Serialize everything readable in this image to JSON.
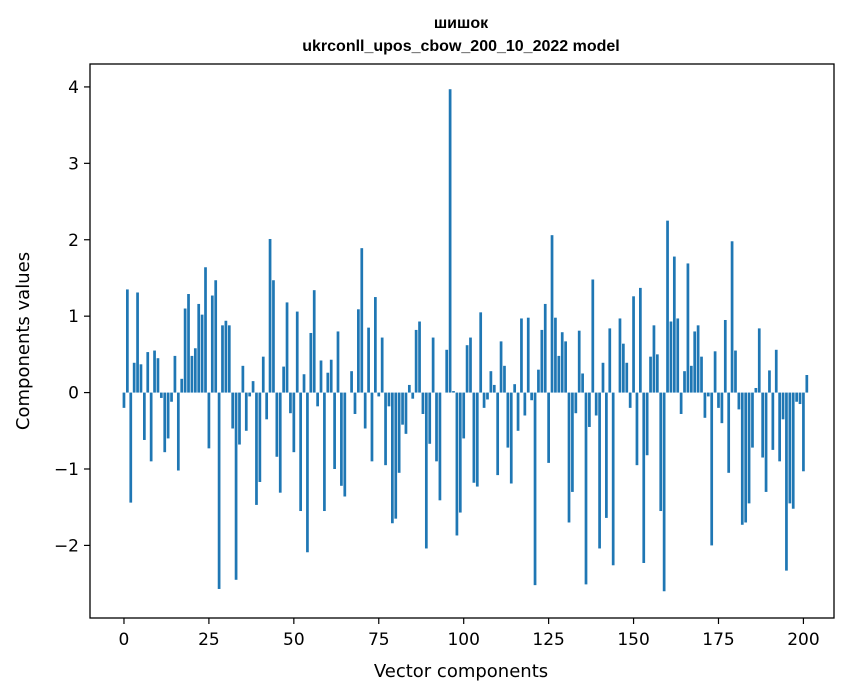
{
  "chart_data": {
    "type": "bar",
    "title": "шишок",
    "subtitle": "ukrconll_upos_cbow_200_10_2022 model",
    "xlabel": "Vector components",
    "ylabel": "Components values",
    "xlim": [
      -10,
      209
    ],
    "ylim": [
      -2.95,
      4.3
    ],
    "xticks": [
      0,
      25,
      50,
      75,
      100,
      125,
      150,
      175,
      200
    ],
    "xtick_labels": [
      "0",
      "25",
      "50",
      "75",
      "100",
      "125",
      "150",
      "175",
      "200"
    ],
    "yticks": [
      -2,
      -1,
      0,
      1,
      2,
      3,
      4
    ],
    "ytick_labels": [
      "−2",
      "−1",
      "0",
      "1",
      "2",
      "3",
      "4"
    ],
    "grid": false,
    "bar_color": "#1f77b4",
    "values": [
      -0.2,
      1.35,
      -1.44,
      0.39,
      1.31,
      0.37,
      -0.62,
      0.53,
      -0.9,
      0.55,
      0.45,
      -0.07,
      -0.78,
      -0.6,
      -0.12,
      0.48,
      -1.02,
      0.18,
      1.1,
      1.29,
      0.48,
      0.58,
      1.16,
      1.02,
      1.64,
      -0.73,
      1.27,
      1.47,
      -2.57,
      0.88,
      0.94,
      0.88,
      -0.47,
      -2.45,
      -0.68,
      0.35,
      -0.5,
      -0.05,
      0.15,
      -1.47,
      -1.17,
      0.47,
      -0.35,
      2.01,
      1.47,
      -0.84,
      -1.31,
      0.34,
      1.18,
      -0.27,
      -0.78,
      1.06,
      -1.55,
      0.24,
      -2.09,
      0.78,
      1.34,
      -0.18,
      0.42,
      -1.55,
      0.26,
      0.43,
      -1.0,
      0.8,
      -1.22,
      -1.36,
      0.0,
      0.28,
      -0.28,
      1.09,
      1.89,
      -0.47,
      0.85,
      -0.9,
      1.25,
      -0.05,
      0.72,
      -0.95,
      -0.18,
      -1.71,
      -1.65,
      -1.05,
      -0.42,
      -0.54,
      0.1,
      -0.08,
      0.82,
      0.93,
      -0.28,
      -2.04,
      -0.67,
      0.72,
      -0.9,
      -1.41,
      0.0,
      0.56,
      3.97,
      0.02,
      -1.87,
      -1.57,
      -0.6,
      0.62,
      0.72,
      -1.18,
      -1.23,
      1.05,
      -0.2,
      -0.09,
      0.28,
      0.1,
      -1.08,
      0.67,
      0.35,
      -0.72,
      -1.19,
      0.11,
      -0.5,
      0.97,
      -0.3,
      0.98,
      -0.1,
      -2.52,
      0.3,
      0.82,
      1.16,
      -0.92,
      2.06,
      0.98,
      0.48,
      0.79,
      0.67,
      -1.7,
      -1.3,
      -0.27,
      0.81,
      0.25,
      -2.51,
      -0.45,
      1.48,
      -0.3,
      -2.04,
      0.39,
      -1.64,
      0.84,
      -2.26,
      0.0,
      0.97,
      0.64,
      0.39,
      -0.2,
      1.26,
      -0.95,
      1.37,
      -2.23,
      -0.82,
      0.47,
      0.88,
      0.5,
      -1.55,
      -2.6,
      2.25,
      0.93,
      1.78,
      0.97,
      -0.28,
      0.28,
      1.69,
      0.35,
      0.8,
      0.88,
      0.47,
      -0.33,
      -0.05,
      -2.0,
      0.54,
      -0.2,
      -0.4,
      0.95,
      -1.05,
      1.98,
      0.55,
      -0.22,
      -1.73,
      -1.7,
      -1.45,
      -0.72,
      0.06,
      0.84,
      -0.85,
      -1.3,
      0.29,
      -0.75,
      0.56,
      -0.9,
      -0.35,
      -2.33,
      -1.45,
      -1.52,
      -0.12,
      -0.15,
      -1.03,
      0.23
    ]
  }
}
